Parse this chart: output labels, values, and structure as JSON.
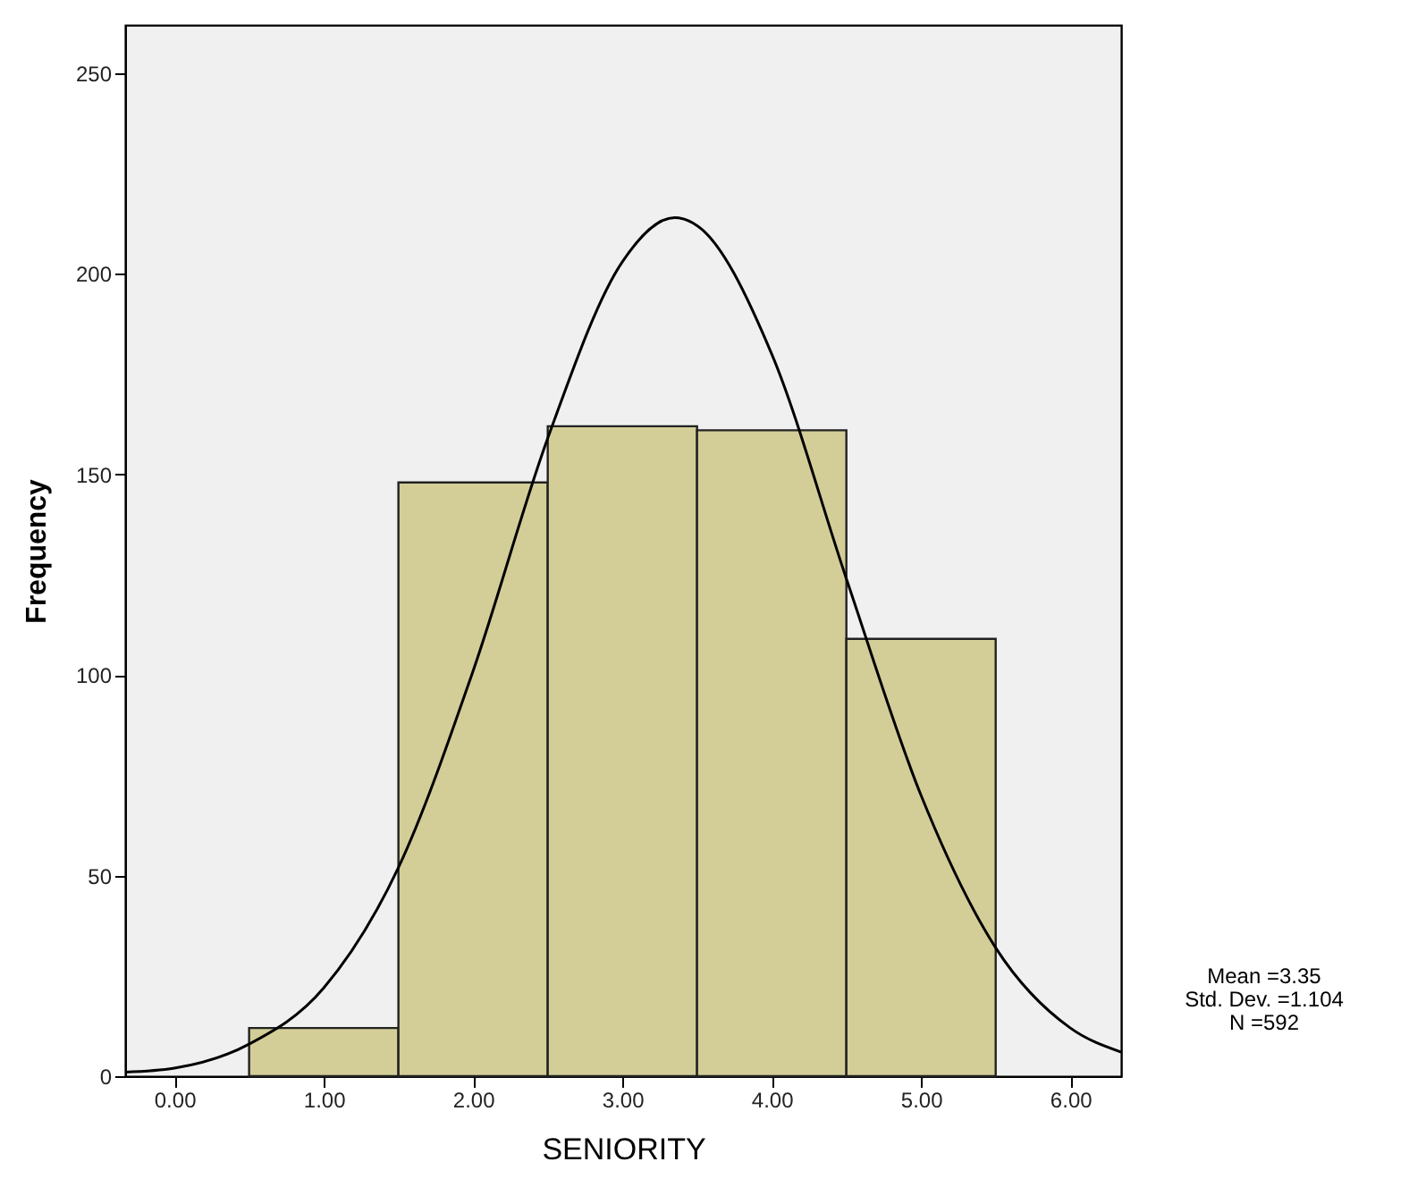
{
  "chart_data": {
    "type": "histogram",
    "xlabel": "SENIORITY",
    "ylabel": "Frequency",
    "bins": [
      0.5,
      1.5,
      2.5,
      3.5,
      4.5,
      5.5
    ],
    "values": [
      12,
      148,
      162,
      161,
      109
    ],
    "color": "#d3ce97",
    "xlim": [
      -0.33,
      6.34
    ],
    "xticks": [
      {
        "value": 0,
        "label": "0.00"
      },
      {
        "value": 1,
        "label": "1.00"
      },
      {
        "value": 2,
        "label": "2.00"
      },
      {
        "value": 3,
        "label": "3.00"
      },
      {
        "value": 4,
        "label": "4.00"
      },
      {
        "value": 5,
        "label": "5.00"
      },
      {
        "value": 6,
        "label": "6.00"
      }
    ],
    "ylim": [
      0,
      262
    ],
    "yticks": [
      0,
      50,
      100,
      150,
      200,
      250
    ],
    "grid": false,
    "series": [
      {
        "type": "line",
        "color": "#000000",
        "x": [
          -0.33,
          0,
          0.5,
          1,
          1.5,
          2,
          2.5,
          3,
          3.35,
          3.5,
          4,
          4.5,
          5,
          5.5,
          6,
          6.34
        ],
        "values": [
          1,
          2,
          8,
          22,
          52,
          101,
          159,
          203,
          214,
          212,
          180,
          124,
          70,
          32,
          12,
          6
        ]
      }
    ],
    "annotations": [
      "Mean =3.35",
      "Std. Dev. =1.104",
      "N =592"
    ]
  }
}
